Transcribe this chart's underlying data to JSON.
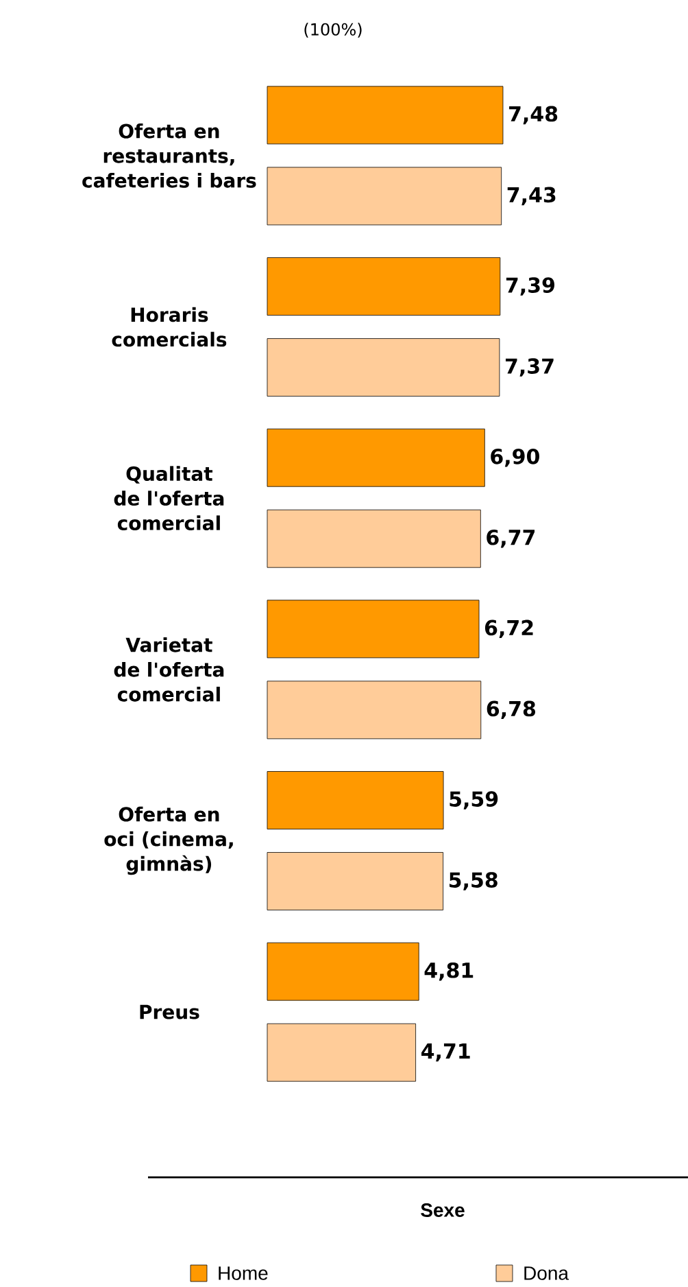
{
  "chart_data": {
    "type": "bar",
    "orientation": "horizontal",
    "annotations": [
      "(100%)"
    ],
    "legend_title": "Sexe",
    "legend": "bottom",
    "categories": [
      "Oferta en restaurants, cafeteries i bars",
      "Horaris comercials",
      "Qualitat de l'oferta comercial",
      "Varietat de l'oferta comercial",
      "Oferta en oci (cinema, gimnàs)",
      "Preus"
    ],
    "series": [
      {
        "name": "Home",
        "color": "#ff9900",
        "values": [
          7.48,
          7.39,
          6.9,
          6.72,
          5.59,
          4.81
        ],
        "value_labels": [
          "7,48",
          "7,39",
          "6,90",
          "6,72",
          "5,59",
          "4,81"
        ]
      },
      {
        "name": "Dona",
        "color": "#ffcc99",
        "values": [
          7.43,
          7.37,
          6.77,
          6.78,
          5.58,
          4.71
        ],
        "value_labels": [
          "7,43",
          "7,37",
          "6,77",
          "6,78",
          "5,58",
          "4,71"
        ]
      }
    ]
  }
}
